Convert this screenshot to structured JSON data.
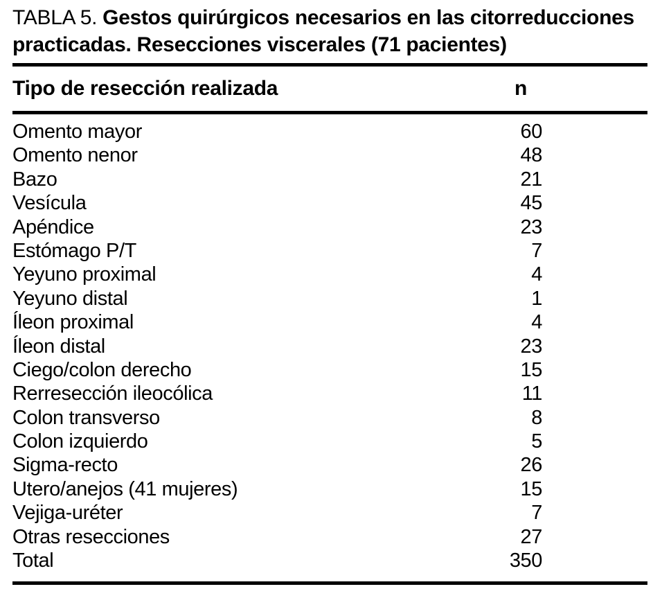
{
  "table": {
    "title_prefix": "TABLA 5. ",
    "title_bold": "Gestos quirúrgicos necesarios en las citorreducciones practicadas. Resecciones viscerales (71 pacientes)",
    "columns": {
      "type_label": "Tipo de resección realizada",
      "n_label": "n"
    },
    "rows": [
      {
        "label": "Omento mayor",
        "n": "60"
      },
      {
        "label": "Omento nenor",
        "n": "48"
      },
      {
        "label": "Bazo",
        "n": "21"
      },
      {
        "label": "Vesícula",
        "n": "45"
      },
      {
        "label": "Apéndice",
        "n": "23"
      },
      {
        "label": "Estómago P/T",
        "n": "7"
      },
      {
        "label": "Yeyuno proximal",
        "n": "4"
      },
      {
        "label": "Yeyuno distal",
        "n": "1"
      },
      {
        "label": "Íleon proximal",
        "n": "4"
      },
      {
        "label": "Íleon distal",
        "n": "23"
      },
      {
        "label": "Ciego/colon derecho",
        "n": "15"
      },
      {
        "label": "Rerresección ileocólica",
        "n": "11"
      },
      {
        "label": "Colon transverso",
        "n": "8"
      },
      {
        "label": "Colon izquierdo",
        "n": "5"
      },
      {
        "label": "Sigma-recto",
        "n": "26"
      },
      {
        "label": "Utero/anejos (41 mujeres)",
        "n": "15"
      },
      {
        "label": "Vejiga-uréter",
        "n": "7"
      },
      {
        "label": "Otras resecciones",
        "n": "27"
      },
      {
        "label": "Total",
        "n": "350"
      }
    ]
  }
}
